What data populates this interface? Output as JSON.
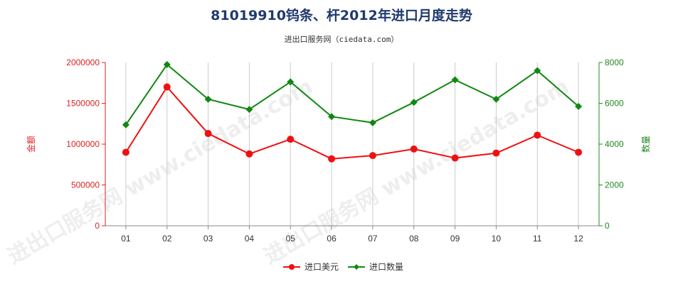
{
  "chart_data": {
    "type": "line",
    "title": "81019910钨条、杆2012年进口月度走势",
    "subtitle": "进出口服务网（ciedata.com）",
    "watermark": "进出口服务网 www.ciedata.com",
    "categories": [
      "01",
      "02",
      "03",
      "04",
      "05",
      "06",
      "07",
      "08",
      "09",
      "10",
      "11",
      "12"
    ],
    "y_left": {
      "label": "金额",
      "range": [
        0,
        2000000
      ],
      "ticks": [
        0,
        500000,
        1000000,
        1500000,
        2000000
      ],
      "tick_labels": [
        "0",
        "500000",
        "1000000",
        "1500000",
        "2000000"
      ]
    },
    "y_right": {
      "label": "数量",
      "range": [
        0,
        8000
      ],
      "ticks": [
        0,
        2000,
        4000,
        6000,
        8000
      ],
      "tick_labels": [
        "0",
        "2000",
        "4000",
        "6000",
        "8000"
      ]
    },
    "series": [
      {
        "name": "进口美元",
        "axis": "left",
        "color": "#ee1111",
        "marker": "circle",
        "values": [
          900000,
          1700000,
          1130000,
          880000,
          1060000,
          820000,
          860000,
          940000,
          830000,
          890000,
          1110000,
          900000
        ]
      },
      {
        "name": "进口数量",
        "axis": "right",
        "color": "#118811",
        "marker": "diamond",
        "values": [
          4950,
          7900,
          6200,
          5700,
          7050,
          5350,
          5050,
          6050,
          7150,
          6200,
          7600,
          5850
        ]
      }
    ],
    "grid": "vertical",
    "legend": "bottom-center"
  }
}
